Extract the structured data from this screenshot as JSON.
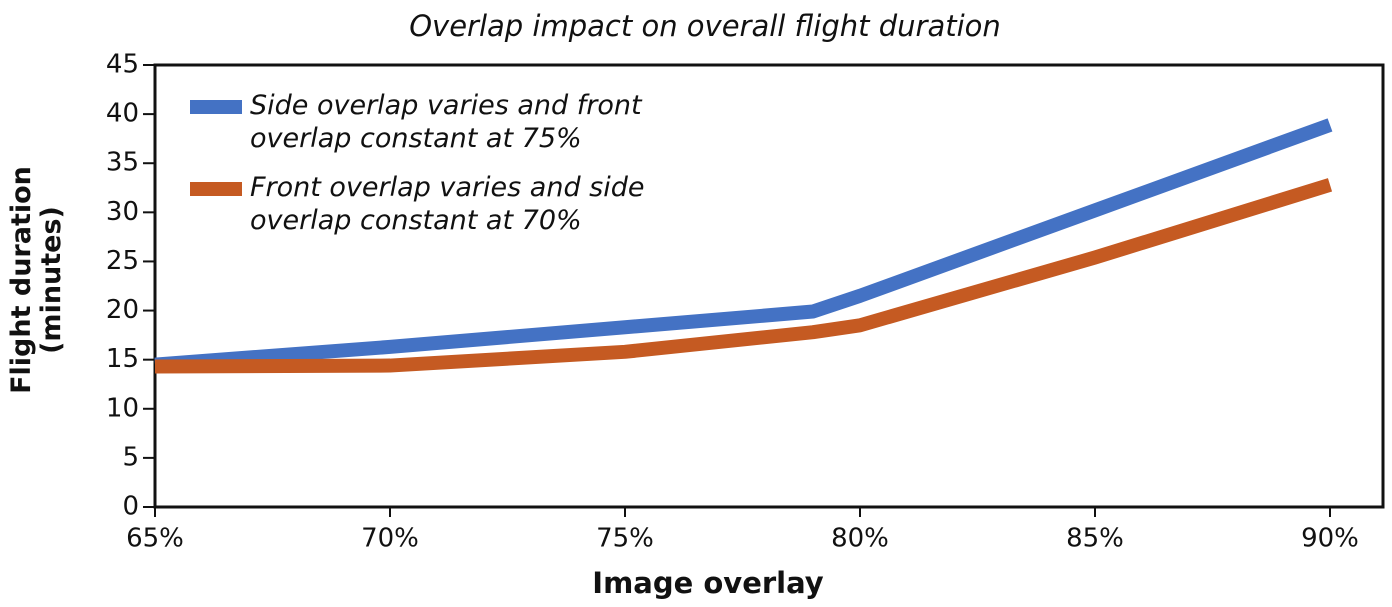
{
  "chart_data": {
    "type": "line",
    "title": "Overlap impact on overall flight duration",
    "xlabel": "Image overlay",
    "ylabel": "Flight duration (minutes)",
    "x": [
      65,
      70,
      75,
      79,
      80,
      85,
      90
    ],
    "series": [
      {
        "name": "Side overlap varies and front overlap constant at 75%",
        "color": "#4472c4",
        "values": [
          14.5,
          16.3,
          18.3,
          19.9,
          21.5,
          30.2,
          38.9
        ]
      },
      {
        "name": "Front overlap varies and side overlap constant at 70%",
        "color": "#c55a22",
        "values": [
          14.3,
          14.4,
          15.8,
          17.8,
          18.5,
          25.4,
          32.8
        ]
      }
    ],
    "xlim": [
      65,
      90
    ],
    "xticks": [
      {
        "value": 65,
        "label": "65%"
      },
      {
        "value": 70,
        "label": "70%"
      },
      {
        "value": 75,
        "label": "75%"
      },
      {
        "value": 80,
        "label": "80%"
      },
      {
        "value": 85,
        "label": "85%"
      },
      {
        "value": 90,
        "label": "90%"
      }
    ],
    "ylim": [
      0,
      45
    ],
    "yticks": [
      0,
      5,
      10,
      15,
      20,
      25,
      30,
      35,
      40,
      45
    ],
    "grid": false,
    "legend": "upper left"
  }
}
